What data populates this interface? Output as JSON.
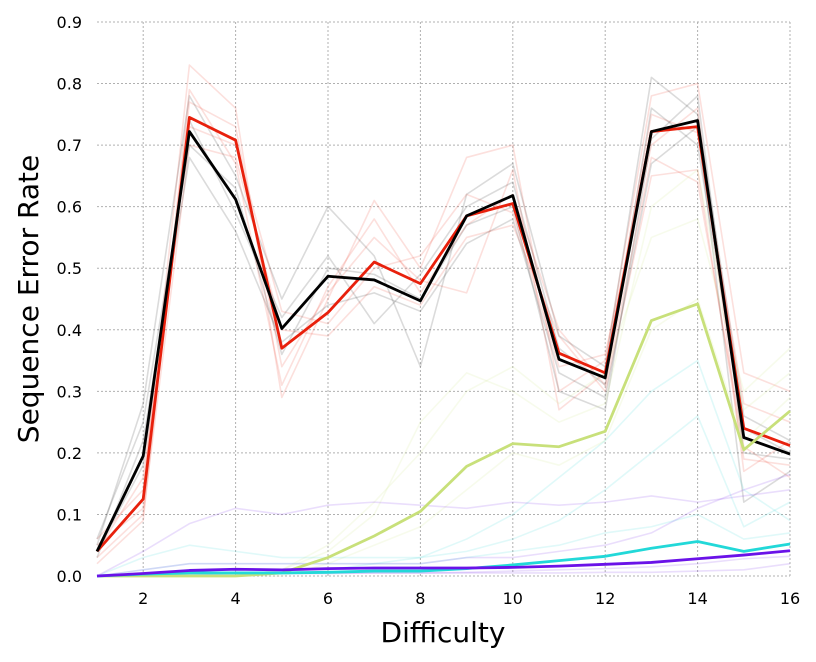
{
  "chart_data": {
    "type": "line",
    "title": "",
    "xlabel": "Difficulty",
    "ylabel": "Sequence Error Rate",
    "xlim": [
      1,
      16
    ],
    "ylim": [
      0,
      0.9
    ],
    "xticks": [
      2,
      4,
      6,
      8,
      10,
      12,
      14,
      16
    ],
    "yticks": [
      0.0,
      0.1,
      0.2,
      0.3,
      0.4,
      0.5,
      0.6,
      0.7,
      0.8,
      0.9
    ],
    "ytick_labels": [
      "0.0",
      "0.1",
      "0.2",
      "0.3",
      "0.4",
      "0.5",
      "0.6",
      "0.7",
      "0.8",
      "0.9"
    ],
    "grid": true,
    "legend": "none",
    "x": [
      1,
      2,
      3,
      4,
      5,
      6,
      7,
      8,
      9,
      10,
      11,
      12,
      13,
      14,
      15,
      16
    ],
    "series": [
      {
        "color": "#e8200c",
        "emphasis": "main",
        "values": [
          0.04,
          0.125,
          0.745,
          0.708,
          0.37,
          0.428,
          0.51,
          0.475,
          0.585,
          0.605,
          0.362,
          0.33,
          0.722,
          0.73,
          0.24,
          0.212
        ]
      },
      {
        "color": "#000000",
        "emphasis": "main",
        "values": [
          0.04,
          0.195,
          0.722,
          0.612,
          0.402,
          0.487,
          0.481,
          0.447,
          0.585,
          0.618,
          0.352,
          0.322,
          0.722,
          0.74,
          0.225,
          0.198
        ]
      },
      {
        "color": "#c8e07a",
        "emphasis": "main",
        "values": [
          0.0,
          0.0,
          0.0,
          0.0,
          0.005,
          0.03,
          0.065,
          0.105,
          0.178,
          0.215,
          0.21,
          0.235,
          0.415,
          0.442,
          0.205,
          0.268
        ]
      },
      {
        "color": "#22d8d8",
        "emphasis": "main",
        "values": [
          0.0,
          0.003,
          0.005,
          0.005,
          0.005,
          0.006,
          0.008,
          0.008,
          0.012,
          0.018,
          0.025,
          0.032,
          0.045,
          0.056,
          0.04,
          0.052
        ]
      },
      {
        "color": "#6a12e8",
        "emphasis": "main",
        "values": [
          0.0,
          0.004,
          0.009,
          0.011,
          0.01,
          0.012,
          0.013,
          0.013,
          0.013,
          0.014,
          0.016,
          0.019,
          0.022,
          0.028,
          0.034,
          0.041
        ]
      },
      {
        "color": "#e8200c",
        "emphasis": "faint",
        "values": [
          0.06,
          0.14,
          0.83,
          0.76,
          0.29,
          0.45,
          0.61,
          0.5,
          0.68,
          0.7,
          0.3,
          0.35,
          0.78,
          0.8,
          0.33,
          0.3
        ]
      },
      {
        "color": "#e8200c",
        "emphasis": "faint",
        "values": [
          0.03,
          0.1,
          0.7,
          0.68,
          0.4,
          0.39,
          0.47,
          0.44,
          0.55,
          0.57,
          0.39,
          0.3,
          0.65,
          0.66,
          0.19,
          0.18
        ]
      },
      {
        "color": "#e8200c",
        "emphasis": "faint",
        "values": [
          0.05,
          0.11,
          0.77,
          0.73,
          0.34,
          0.46,
          0.55,
          0.48,
          0.46,
          0.66,
          0.27,
          0.33,
          0.75,
          0.72,
          0.28,
          0.25
        ]
      },
      {
        "color": "#e8200c",
        "emphasis": "faint",
        "values": [
          0.04,
          0.16,
          0.73,
          0.7,
          0.43,
          0.41,
          0.5,
          0.52,
          0.62,
          0.59,
          0.34,
          0.36,
          0.7,
          0.76,
          0.17,
          0.22
        ]
      },
      {
        "color": "#e8200c",
        "emphasis": "faint",
        "values": [
          0.02,
          0.09,
          0.79,
          0.67,
          0.31,
          0.47,
          0.58,
          0.46,
          0.57,
          0.62,
          0.4,
          0.31,
          0.68,
          0.64,
          0.21,
          0.16
        ]
      },
      {
        "color": "#000000",
        "emphasis": "faint",
        "values": [
          0.05,
          0.28,
          0.78,
          0.65,
          0.45,
          0.6,
          0.52,
          0.34,
          0.62,
          0.67,
          0.39,
          0.34,
          0.81,
          0.75,
          0.26,
          0.22
        ]
      },
      {
        "color": "#000000",
        "emphasis": "faint",
        "values": [
          0.03,
          0.22,
          0.68,
          0.56,
          0.38,
          0.44,
          0.46,
          0.43,
          0.54,
          0.58,
          0.33,
          0.29,
          0.67,
          0.73,
          0.12,
          0.17
        ]
      },
      {
        "color": "#000000",
        "emphasis": "faint",
        "values": [
          0.04,
          0.18,
          0.74,
          0.59,
          0.42,
          0.52,
          0.41,
          0.49,
          0.6,
          0.64,
          0.37,
          0.31,
          0.76,
          0.7,
          0.24,
          0.2
        ]
      },
      {
        "color": "#000000",
        "emphasis": "faint",
        "values": [
          0.06,
          0.25,
          0.7,
          0.63,
          0.36,
          0.5,
          0.49,
          0.45,
          0.57,
          0.6,
          0.3,
          0.27,
          0.71,
          0.78,
          0.2,
          0.19
        ]
      },
      {
        "color": "#c8e07a",
        "emphasis": "faint",
        "values": [
          0.0,
          0.0,
          0.0,
          0.0,
          0.01,
          0.05,
          0.12,
          0.2,
          0.3,
          0.34,
          0.28,
          0.33,
          0.55,
          0.58,
          0.3,
          0.37
        ]
      },
      {
        "color": "#c8e07a",
        "emphasis": "faint",
        "values": [
          0.0,
          0.0,
          0.0,
          0.0,
          0.01,
          0.04,
          0.1,
          0.25,
          0.33,
          0.3,
          0.25,
          0.28,
          0.6,
          0.66,
          0.27,
          0.33
        ]
      },
      {
        "color": "#c8e07a",
        "emphasis": "faint",
        "values": [
          0.0,
          0.0,
          0.0,
          0.0,
          0.0,
          0.02,
          0.05,
          0.08,
          0.14,
          0.2,
          0.18,
          0.22,
          0.4,
          0.45,
          0.22,
          0.29
        ]
      },
      {
        "color": "#22d8d8",
        "emphasis": "faint",
        "values": [
          0.0,
          0.03,
          0.05,
          0.04,
          0.03,
          0.03,
          0.03,
          0.03,
          0.06,
          0.1,
          0.16,
          0.22,
          0.3,
          0.35,
          0.14,
          0.09
        ]
      },
      {
        "color": "#22d8d8",
        "emphasis": "faint",
        "values": [
          0.0,
          0.01,
          0.02,
          0.02,
          0.02,
          0.02,
          0.02,
          0.03,
          0.04,
          0.06,
          0.09,
          0.14,
          0.2,
          0.26,
          0.08,
          0.12
        ]
      },
      {
        "color": "#22d8d8",
        "emphasis": "faint",
        "values": [
          0.0,
          0.0,
          0.01,
          0.01,
          0.01,
          0.01,
          0.02,
          0.02,
          0.03,
          0.04,
          0.05,
          0.07,
          0.08,
          0.1,
          0.06,
          0.07
        ]
      },
      {
        "color": "#6a12e8",
        "emphasis": "faint",
        "values": [
          0.0,
          0.04,
          0.085,
          0.11,
          0.1,
          0.115,
          0.12,
          0.115,
          0.11,
          0.12,
          0.115,
          0.12,
          0.13,
          0.12,
          0.13,
          0.14
        ]
      },
      {
        "color": "#6a12e8",
        "emphasis": "faint",
        "values": [
          0.0,
          0.01,
          0.02,
          0.02,
          0.02,
          0.02,
          0.02,
          0.02,
          0.03,
          0.03,
          0.04,
          0.05,
          0.07,
          0.11,
          0.14,
          0.165
        ]
      },
      {
        "color": "#6a12e8",
        "emphasis": "faint",
        "values": [
          0.0,
          0.0,
          0.0,
          0.005,
          0.005,
          0.005,
          0.005,
          0.005,
          0.005,
          0.005,
          0.005,
          0.006,
          0.006,
          0.008,
          0.01,
          0.02
        ]
      },
      {
        "color": "#6a12e8",
        "emphasis": "faint",
        "values": [
          0.0,
          0.0,
          0.003,
          0.004,
          0.004,
          0.004,
          0.005,
          0.005,
          0.006,
          0.008,
          0.01,
          0.012,
          0.015,
          0.02,
          0.028,
          0.032
        ]
      }
    ]
  }
}
